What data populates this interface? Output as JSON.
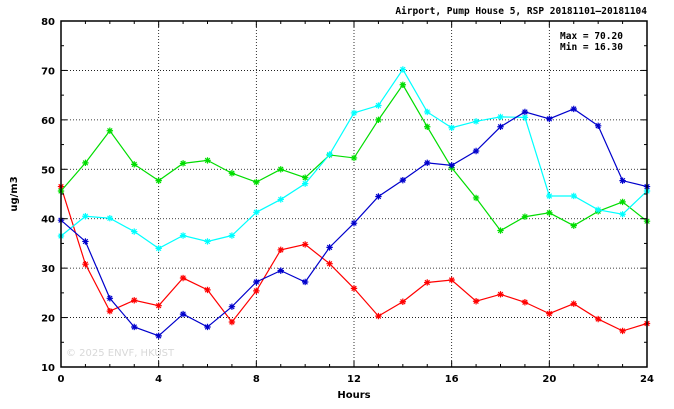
{
  "chart_data": {
    "type": "line",
    "title": "Airport, Pump House 5, RSP 20181101–20181104",
    "xlabel": "Hours",
    "ylabel": "ug/m3",
    "xlim": [
      0,
      24
    ],
    "ylim": [
      10,
      80
    ],
    "x_ticks": [
      0,
      4,
      8,
      12,
      16,
      20,
      24
    ],
    "y_ticks": [
      10,
      20,
      30,
      40,
      50,
      60,
      70,
      80
    ],
    "grid": true,
    "stats": {
      "max_label": "Max = 70.20",
      "min_label": "Min = 16.30"
    },
    "watermark": "© 2025  ENVF, HKUST",
    "x": [
      0,
      1,
      2,
      3,
      4,
      5,
      6,
      7,
      8,
      9,
      10,
      11,
      12,
      13,
      14,
      15,
      16,
      17,
      18,
      19,
      20,
      21,
      22,
      23,
      24
    ],
    "series": [
      {
        "color": "#ff0000",
        "values": [
          46.5,
          30.8,
          21.3,
          23.5,
          22.4,
          28.0,
          25.6,
          19.1,
          25.4,
          33.7,
          34.8,
          30.9,
          25.9,
          20.3,
          23.2,
          27.1,
          27.6,
          23.3,
          24.7,
          23.1,
          20.8,
          22.8,
          19.7,
          17.3,
          18.8
        ]
      },
      {
        "color": "#00dd00",
        "values": [
          45.6,
          51.3,
          57.8,
          51.0,
          47.7,
          51.2,
          51.8,
          49.2,
          47.4,
          50.0,
          48.3,
          52.9,
          52.3,
          60.0,
          67.1,
          58.6,
          50.3,
          44.2,
          37.6,
          40.4,
          41.2,
          38.6,
          41.5,
          43.4,
          39.5
        ]
      },
      {
        "color": "#00ffff",
        "values": [
          36.5,
          40.5,
          40.1,
          37.4,
          34.0,
          36.6,
          35.4,
          36.6,
          41.3,
          43.9,
          47.1,
          53.0,
          61.4,
          62.9,
          70.2,
          61.6,
          58.4,
          59.7,
          60.6,
          60.5,
          44.6,
          44.6,
          41.8,
          40.9,
          45.6
        ]
      },
      {
        "color": "#0000cc",
        "values": [
          39.7,
          35.4,
          23.9,
          18.1,
          16.3,
          20.7,
          18.1,
          22.2,
          27.2,
          29.5,
          27.2,
          34.2,
          39.1,
          44.5,
          47.8,
          51.3,
          50.8,
          53.7,
          58.6,
          61.6,
          60.2,
          62.2,
          58.8,
          47.7,
          46.5
        ]
      }
    ]
  }
}
